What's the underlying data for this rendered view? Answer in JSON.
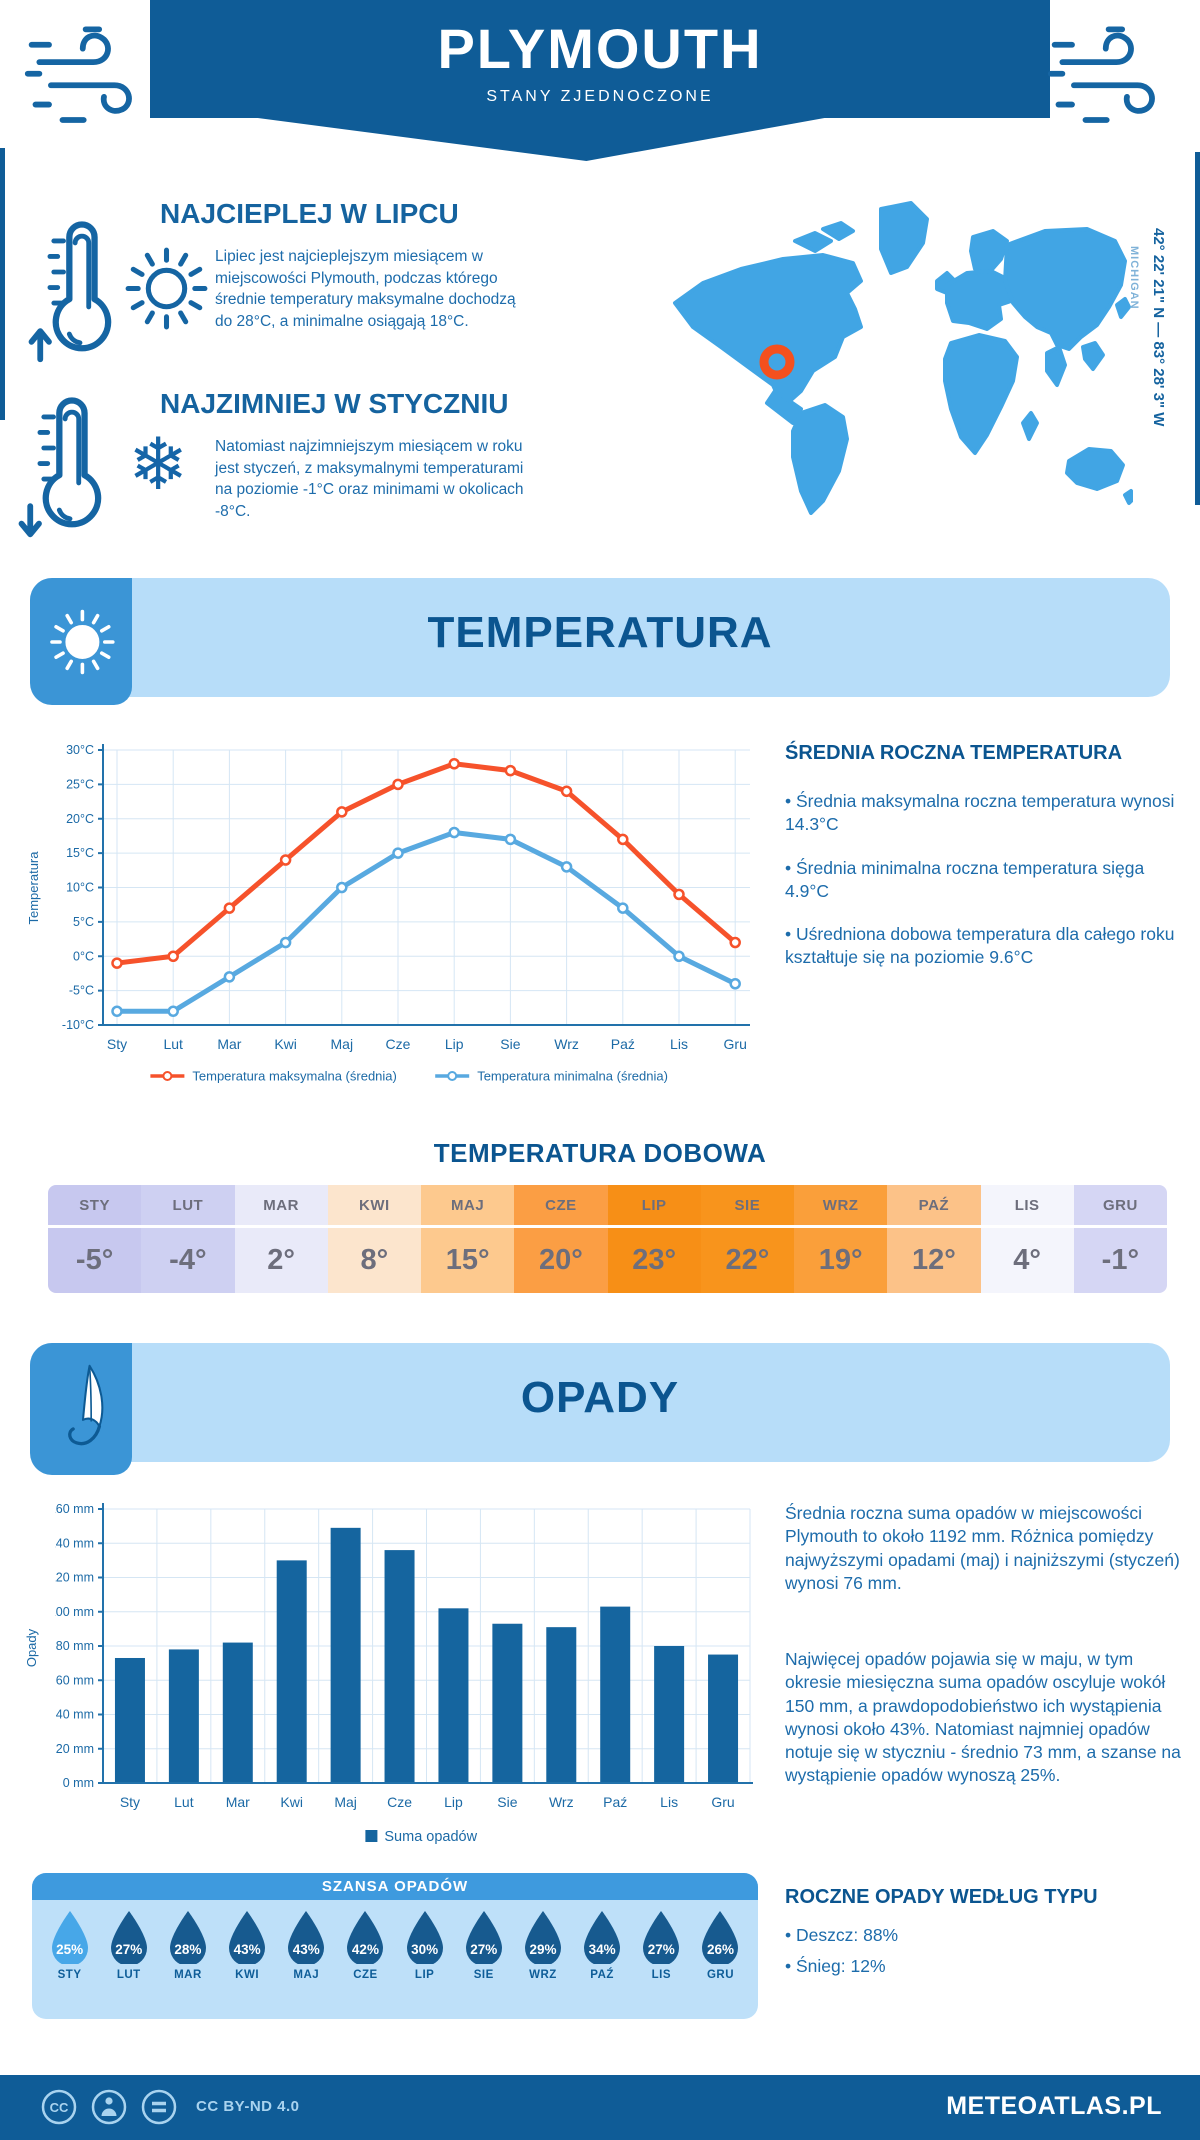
{
  "header": {
    "title": "PLYMOUTH",
    "subtitle": "STANY ZJEDNOCZONE"
  },
  "highlights": {
    "warm": {
      "title": "NAJCIEPLEJ W LIPCU",
      "text": "Lipiec jest najcieplejszym miesiącem w miejscowości Plymouth, podczas którego średnie temperatury maksymalne dochodzą do 28°C, a minimalne osiągają 18°C."
    },
    "cold": {
      "title": "NAJZIMNIEJ W STYCZNIU",
      "text": "Natomiast najzimniejszym miesiącem w roku jest styczeń, z maksymalnymi temperaturami na poziomie -1°C oraz minimami w okolicach -8°C."
    }
  },
  "map": {
    "coordinates": "42° 22' 21\" N — 83° 28' 3\" W",
    "region": "MICHIGAN",
    "marker_color": "#f4501e",
    "land_color": "#41a5e4"
  },
  "sections": {
    "temperature": "TEMPERATURA",
    "precipitation": "OPADY"
  },
  "annual_temp": {
    "title": "ŚREDNIA ROCZNA TEMPERATURA",
    "bullets": [
      "Średnia maksymalna roczna temperatura wynosi 14.3°C",
      "Średnia minimalna roczna temperatura sięga 4.9°C",
      "Uśredniona dobowa temperatura dla całego roku kształtuje się na poziomie 9.6°C"
    ]
  },
  "daily_table": {
    "title": "TEMPERATURA DOBOWA",
    "months": [
      "STY",
      "LUT",
      "MAR",
      "KWI",
      "MAJ",
      "CZE",
      "LIP",
      "SIE",
      "WRZ",
      "PAŹ",
      "LIS",
      "GRU"
    ],
    "values": [
      "-5°",
      "-4°",
      "2°",
      "8°",
      "15°",
      "20°",
      "23°",
      "22°",
      "19°",
      "12°",
      "4°",
      "-1°"
    ],
    "colors": [
      "#c7c8ef",
      "#ced0f2",
      "#e9eaf9",
      "#fce5cd",
      "#fdc98e",
      "#fb9e44",
      "#f78f16",
      "#f8941c",
      "#fa9f3a",
      "#fcc288",
      "#f4f5fc",
      "#d5d6f4"
    ]
  },
  "precip_text": {
    "p1": "Średnia roczna suma opadów w miejscowości Plymouth to około 1192 mm. Różnica pomiędzy najwyższymi opadami (maj) i najniższymi (styczeń) wynosi 76 mm.",
    "p2": "Najwięcej opadów pojawia się w maju, w tym okresie miesięczna suma opadów oscyluje wokół 150 mm, a prawdopodobieństwo ich wystąpienia wynosi około 43%. Natomiast najmniej opadów notuje się w styczniu - średnio 73 mm, a szanse na wystąpienie opadów wynoszą 25%."
  },
  "precip_chance": {
    "title": "SZANSA OPADÓW",
    "months": [
      "STY",
      "LUT",
      "MAR",
      "KWI",
      "MAJ",
      "CZE",
      "LIP",
      "SIE",
      "WRZ",
      "PAŹ",
      "LIS",
      "GRU"
    ],
    "values": [
      "25%",
      "27%",
      "28%",
      "43%",
      "43%",
      "42%",
      "30%",
      "27%",
      "29%",
      "34%",
      "27%",
      "26%"
    ],
    "drop_colors": [
      "#47a7e8",
      "#175a8f",
      "#175a8f",
      "#175a8f",
      "#175a8f",
      "#175a8f",
      "#175a8f",
      "#175a8f",
      "#175a8f",
      "#175a8f",
      "#175a8f",
      "#175a8f"
    ]
  },
  "precip_type": {
    "title": "ROCZNE OPADY WEDŁUG TYPU",
    "bullets": [
      "Deszcz: 88%",
      "Śnieg: 12%"
    ]
  },
  "footer": {
    "license": "CC BY-ND 4.0",
    "brand": "METEOATLAS.PL"
  },
  "chart_data": [
    {
      "type": "line",
      "title": "Temperatura",
      "categories": [
        "Sty",
        "Lut",
        "Mar",
        "Kwi",
        "Maj",
        "Cze",
        "Lip",
        "Sie",
        "Wrz",
        "Paź",
        "Lis",
        "Gru"
      ],
      "series": [
        {
          "name": "Temperatura maksymalna (średnia)",
          "color": "#f6522b",
          "values": [
            -1,
            0,
            7,
            14,
            21,
            25,
            28,
            27,
            24,
            17,
            9,
            2
          ]
        },
        {
          "name": "Temperatura minimalna (średnia)",
          "color": "#58a9e0",
          "values": [
            -8,
            -8,
            -3,
            2,
            10,
            15,
            18,
            17,
            13,
            7,
            0,
            -4
          ]
        }
      ],
      "xlabel": "",
      "ylabel": "Temperatura",
      "ylim": [
        -10,
        30
      ],
      "ytick_step": 5,
      "ytick_suffix": "°C",
      "grid": true,
      "legend_position": "bottom"
    },
    {
      "type": "bar",
      "title": "Opady",
      "categories": [
        "Sty",
        "Lut",
        "Mar",
        "Kwi",
        "Maj",
        "Cze",
        "Lip",
        "Sie",
        "Wrz",
        "Paź",
        "Lis",
        "Gru"
      ],
      "series": [
        {
          "name": "Suma opadów",
          "color": "#15659f",
          "values": [
            73,
            78,
            82,
            130,
            149,
            136,
            102,
            93,
            91,
            103,
            80,
            75
          ]
        }
      ],
      "xlabel": "",
      "ylabel": "Opady",
      "ylim": [
        0,
        160
      ],
      "ytick_step": 20,
      "ytick_suffix": " mm",
      "grid": true,
      "legend_position": "bottom"
    }
  ]
}
